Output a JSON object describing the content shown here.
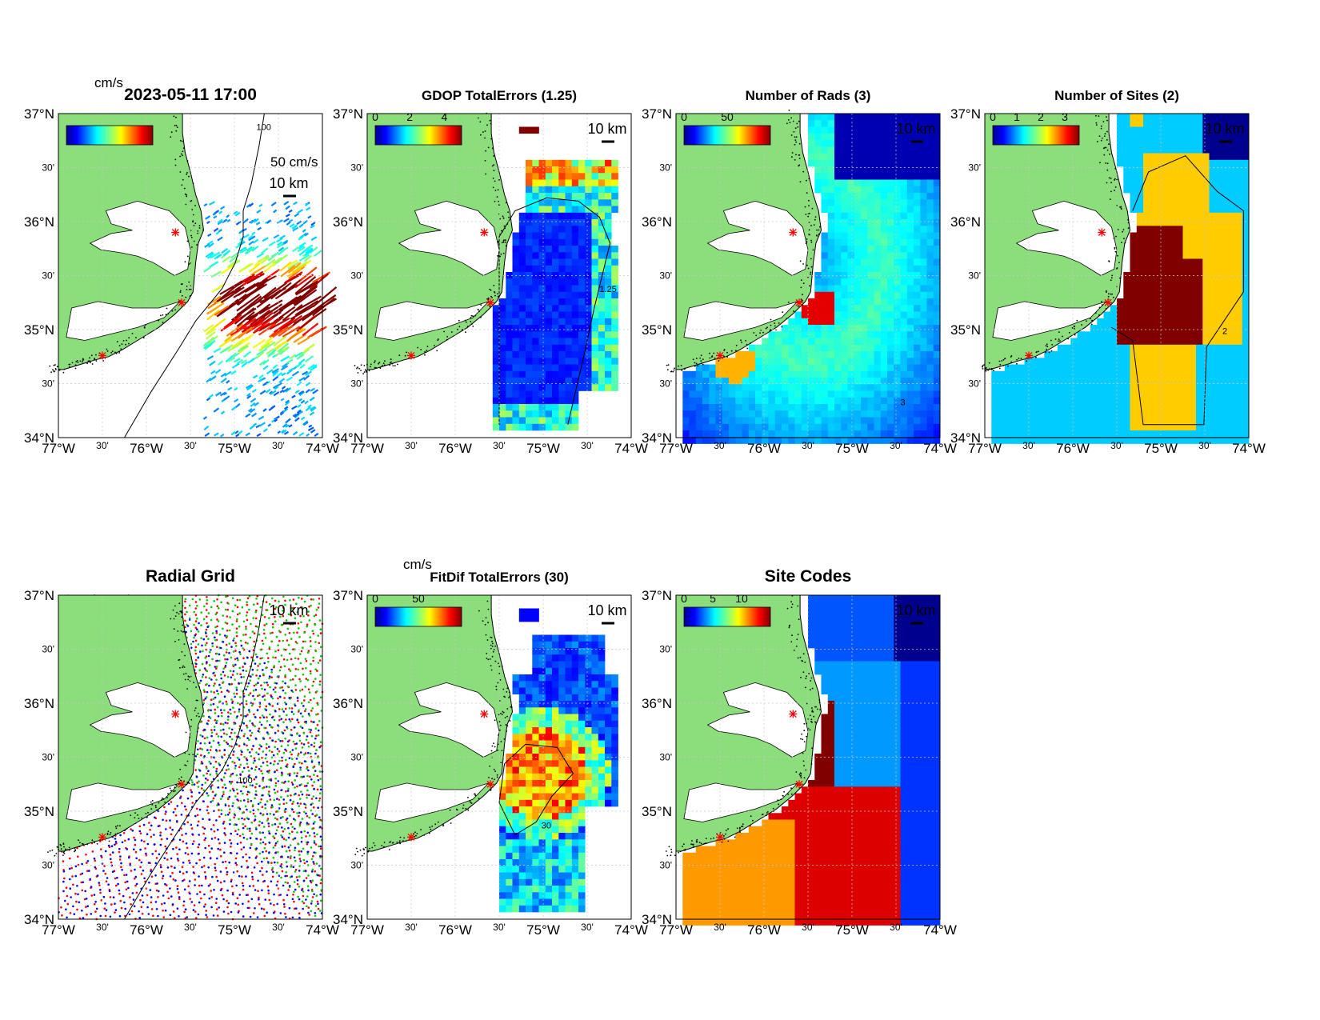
{
  "figure": {
    "panels": [
      {
        "id": "p1",
        "title": "2023-05-11 17:00",
        "cb_label": "cm/s",
        "cb_ticks": [],
        "scale_vec": "50 cm/s",
        "km": "10 km",
        "contour": "100",
        "kind": "vectors"
      },
      {
        "id": "p2",
        "title": "GDOP TotalErrors (1.25)",
        "cb_label": "",
        "cb_ticks": [
          "0",
          "2",
          "4"
        ],
        "km": "10 km",
        "contour": "1.25",
        "kind": "gdop"
      },
      {
        "id": "p3",
        "title": "Number of Rads (3)",
        "cb_label": "",
        "cb_ticks": [
          "0",
          "50"
        ],
        "km": "10 km",
        "contour": "3",
        "kind": "rads"
      },
      {
        "id": "p4",
        "title": "Number of Sites (2)",
        "cb_label": "",
        "cb_ticks": [
          "0",
          "1",
          "2",
          "3"
        ],
        "km": "10 km",
        "contour": "2",
        "kind": "sites"
      },
      {
        "id": "p5",
        "title": "Radial Grid",
        "cb_label": "",
        "cb_ticks": [],
        "km": "10 km",
        "contour": "100",
        "kind": "grid"
      },
      {
        "id": "p6",
        "title": "FitDif TotalErrors (30)",
        "cb_label": "cm/s",
        "cb_ticks": [
          "0",
          "50"
        ],
        "km": "10 km",
        "contour": "30",
        "kind": "fitdif"
      },
      {
        "id": "p7",
        "title": "Site Codes",
        "cb_label": "",
        "cb_ticks": [
          "0",
          "5",
          "10"
        ],
        "km": "10 km",
        "contour": "",
        "kind": "codes"
      }
    ],
    "lat_ticks": [
      {
        "value": 37,
        "label": "37°N"
      },
      {
        "value": 36.5,
        "label": "30'"
      },
      {
        "value": 36,
        "label": "36°N"
      },
      {
        "value": 35.5,
        "label": "30'"
      },
      {
        "value": 35,
        "label": "35°N"
      },
      {
        "value": 34.5,
        "label": "30'"
      },
      {
        "value": 34,
        "label": "34°N"
      }
    ],
    "lon_ticks": [
      {
        "value": -77,
        "label": "77°W"
      },
      {
        "value": -76.5,
        "label": "30'"
      },
      {
        "value": -76,
        "label": "76°W"
      },
      {
        "value": -75.5,
        "label": "30'"
      },
      {
        "value": -75,
        "label": "75°W"
      },
      {
        "value": -74.5,
        "label": "30'"
      },
      {
        "value": -74,
        "label": "74°W"
      }
    ],
    "sites": [
      {
        "lon": -75.67,
        "lat": 35.9
      },
      {
        "lon": -75.6,
        "lat": 35.25
      },
      {
        "lon": -76.5,
        "lat": 34.76
      }
    ],
    "colors": {
      "land": "#8CDE7C",
      "coast": "#000000",
      "site": "#ff0000",
      "grid": "#c8c8c8"
    }
  }
}
